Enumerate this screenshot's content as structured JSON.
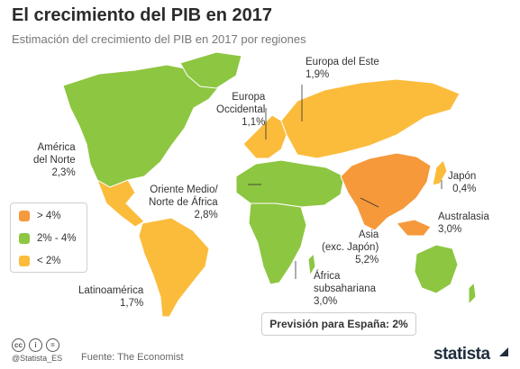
{
  "header": {
    "title": "El crecimiento del PIB en 2017",
    "subtitle": "Estimación del crecimiento del PIB en 2017 por regiones"
  },
  "colors": {
    "high": "#f5993a",
    "mid": "#8dc641",
    "low": "#fbbc3c"
  },
  "legend": [
    {
      "label": "> 4%",
      "color": "#f5993a"
    },
    {
      "label": "2% - 4%",
      "color": "#8dc641"
    },
    {
      "label": "< 2%",
      "color": "#fbbc3c"
    }
  ],
  "regions": {
    "america_norte": {
      "name": "América\ndel Norte",
      "value": "2,3%"
    },
    "europa_occidental": {
      "name": "Europa\nOccidental",
      "value": "1,1%"
    },
    "europa_este": {
      "name": "Europa del Este",
      "value": "1,9%"
    },
    "oriente_medio": {
      "name": "Oriente Medio/\nNorte de África",
      "value": "2,8%"
    },
    "japon": {
      "name": "Japón",
      "value": "0,4%"
    },
    "australasia": {
      "name": "Australasia",
      "value": "3,0%"
    },
    "asia": {
      "name": "Asia\n(exc. Japón)",
      "value": "5,2%"
    },
    "africa_sub": {
      "name": "África\nsubsahariana",
      "value": "3,0%"
    },
    "latinoamerica": {
      "name": "Latinoamérica",
      "value": "1,7%"
    }
  },
  "spain_note": "Previsión para España: 2%",
  "footer": {
    "handle": "@Statista_ES",
    "source": "Fuente: The Economist",
    "brand": "statista"
  }
}
